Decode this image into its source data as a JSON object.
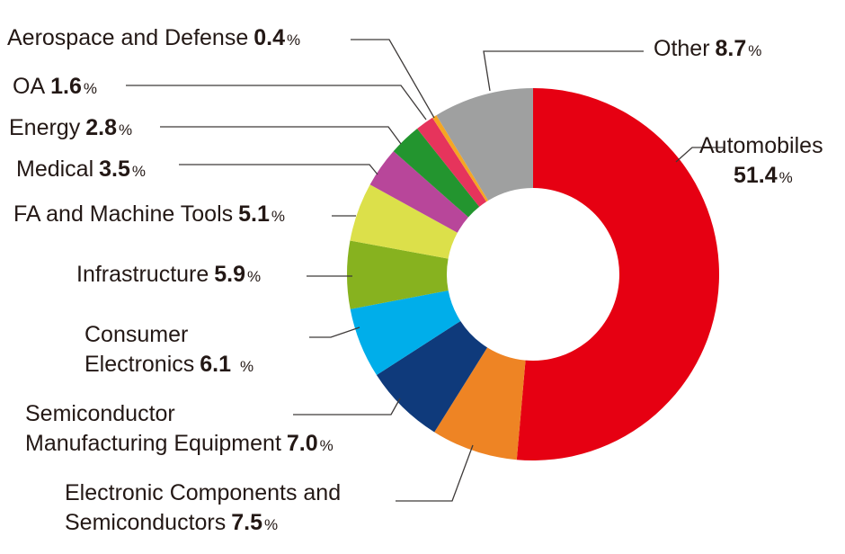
{
  "chart_data": {
    "type": "pie",
    "donut": true,
    "grid": false,
    "legend": "none",
    "unit": "%",
    "slices": [
      {
        "label": "Automobiles",
        "value": 51.4,
        "color": "#e60012"
      },
      {
        "label": "Electronic Components and Semiconductors",
        "value": 7.5,
        "color": "#ee8424"
      },
      {
        "label": "Semiconductor Manufacturing Equipment",
        "value": 7.0,
        "color": "#0f3a7b"
      },
      {
        "label": "Consumer Electronics",
        "value": 6.1,
        "color": "#00aeea"
      },
      {
        "label": "Infrastructure",
        "value": 5.9,
        "color": "#87b21f"
      },
      {
        "label": "FA and Machine Tools",
        "value": 5.1,
        "color": "#dce04a"
      },
      {
        "label": "Medical",
        "value": 3.5,
        "color": "#b8469a"
      },
      {
        "label": "Energy",
        "value": 2.8,
        "color": "#23952f"
      },
      {
        "label": "OA",
        "value": 1.6,
        "color": "#e6345c"
      },
      {
        "label": "Aerospace and Defense",
        "value": 0.4,
        "color": "#f5a623"
      },
      {
        "label": "Other",
        "value": 8.7,
        "color": "#9fa0a0"
      }
    ],
    "labels": [
      {
        "lines": [
          "Automobiles"
        ],
        "value": "51.4",
        "pct": "%"
      },
      {
        "lines": [
          "Electronic Components and",
          "Semiconductors"
        ],
        "value": "7.5",
        "pct": "%"
      },
      {
        "lines": [
          "Semiconductor",
          "Manufacturing Equipment"
        ],
        "value": "7.0",
        "pct": "%"
      },
      {
        "lines": [
          "Consumer",
          "Electronics"
        ],
        "value": "6.1",
        "pct": "%"
      },
      {
        "lines": [
          "Infrastructure"
        ],
        "value": "5.9",
        "pct": "%"
      },
      {
        "lines": [
          "FA and Machine Tools"
        ],
        "value": "5.1",
        "pct": "%"
      },
      {
        "lines": [
          "Medical"
        ],
        "value": "3.5",
        "pct": "%"
      },
      {
        "lines": [
          "Energy"
        ],
        "value": "2.8",
        "pct": "%"
      },
      {
        "lines": [
          "OA"
        ],
        "value": "1.6",
        "pct": "%"
      },
      {
        "lines": [
          "Aerospace and Defense"
        ],
        "value": "0.4",
        "pct": "%"
      },
      {
        "lines": [
          "Other"
        ],
        "value": "8.7",
        "pct": "%"
      }
    ]
  }
}
